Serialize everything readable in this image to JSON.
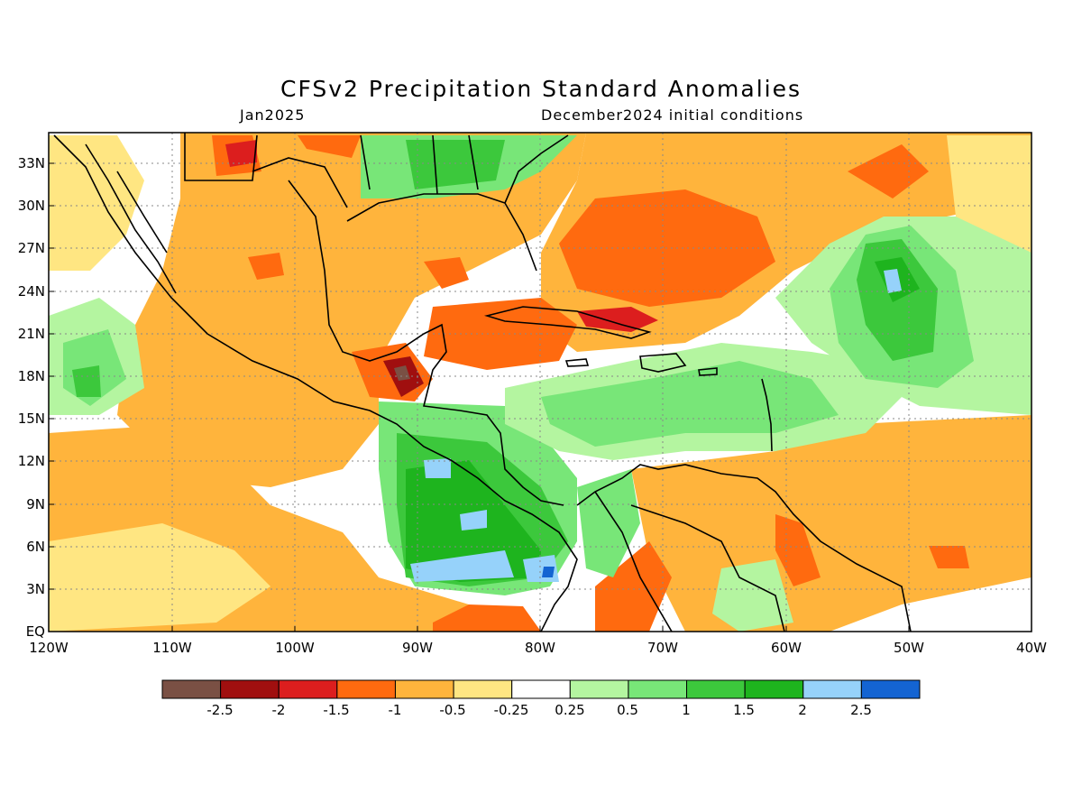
{
  "title": "CFSv2 Precipitation Standard Anomalies",
  "target_month": "Jan2025",
  "init_conditions": "December2024 initial conditions",
  "map": {
    "lat_labels": [
      "33N",
      "30N",
      "27N",
      "24N",
      "21N",
      "18N",
      "15N",
      "12N",
      "9N",
      "6N",
      "3N",
      "EQ"
    ],
    "lon_labels": [
      "120W",
      "110W",
      "100W",
      "90W",
      "80W",
      "70W",
      "60W",
      "50W",
      "40W"
    ]
  },
  "legend": {
    "labels": [
      "-2.5",
      "-2",
      "-1.5",
      "-1",
      "-0.5",
      "-0.25",
      "0.25",
      "0.5",
      "1",
      "1.5",
      "2",
      "2.5"
    ],
    "colors": [
      "#7a5044",
      "#a00f0f",
      "#dc1e1e",
      "#ff6a0f",
      "#ffb43c",
      "#ffe682",
      "#ffffff",
      "#b4f5a0",
      "#78e678",
      "#3cc83c",
      "#1eb41e",
      "#96d2fa",
      "#1464d2"
    ]
  }
}
